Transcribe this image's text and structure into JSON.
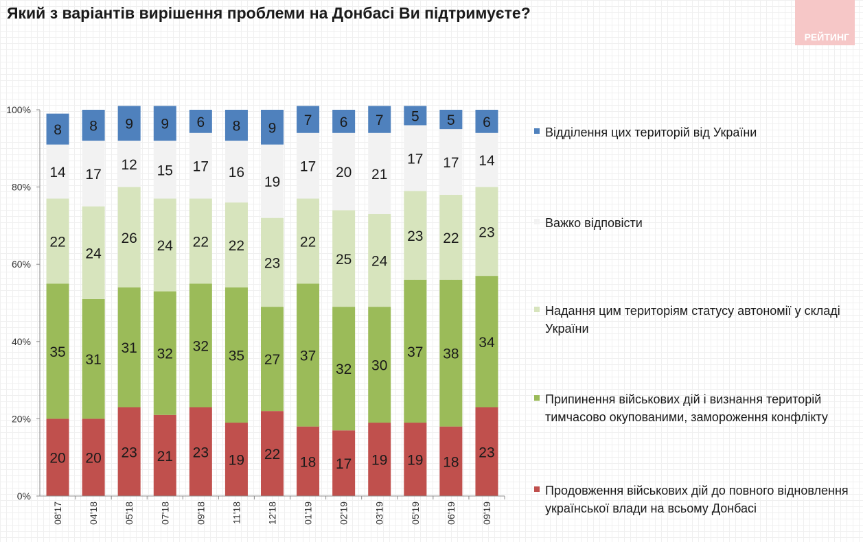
{
  "chart_data": {
    "type": "bar",
    "stacked": true,
    "title": "Який з варіантів вирішення проблеми на Донбасі Ви підтримуєте?",
    "categories": [
      "08'17",
      "04'18",
      "05'18",
      "07'18",
      "09'18",
      "11'18",
      "12'18",
      "01'19",
      "02'19",
      "03'19",
      "05'19",
      "06'19",
      "09'19"
    ],
    "ylim": [
      0,
      100
    ],
    "y_ticks": [
      "0%",
      "20%",
      "40%",
      "60%",
      "80%",
      "100%"
    ],
    "y_tick_values": [
      0,
      20,
      40,
      60,
      80,
      100
    ],
    "legend_position": "right",
    "series": [
      {
        "name": "Продовження військових дій до повного відновлення української влади на всьому Донбасі",
        "color": "#c0504d",
        "label_color": "#1a1a1a",
        "values": [
          20,
          20,
          23,
          21,
          23,
          19,
          22,
          18,
          17,
          19,
          19,
          18,
          23
        ]
      },
      {
        "name": "Припинення військових дій і визнання територій тимчасово окупованими, замороження конфлікту",
        "color": "#9bbb59",
        "label_color": "#1a1a1a",
        "values": [
          35,
          31,
          31,
          32,
          32,
          35,
          27,
          37,
          32,
          30,
          37,
          38,
          34
        ]
      },
      {
        "name": "Надання цим територіям статусу автономії у складі України",
        "color": "#d7e4bd",
        "label_color": "#1a1a1a",
        "values": [
          22,
          24,
          26,
          24,
          22,
          22,
          23,
          22,
          25,
          24,
          23,
          22,
          23
        ]
      },
      {
        "name": "Важко відповісти",
        "color": "#f2f2f2",
        "label_color": "#1a1a1a",
        "values": [
          14,
          17,
          12,
          15,
          17,
          16,
          19,
          17,
          20,
          21,
          17,
          17,
          14
        ]
      },
      {
        "name": "Відділення цих територій від України",
        "color": "#4f81bd",
        "label_color": "#1a1a1a",
        "values": [
          8,
          8,
          9,
          9,
          6,
          8,
          9,
          7,
          6,
          7,
          5,
          5,
          6
        ]
      }
    ]
  },
  "branding": {
    "logo_text": "РЕЙТИНГ",
    "logo_color": "#f6c7c7"
  }
}
